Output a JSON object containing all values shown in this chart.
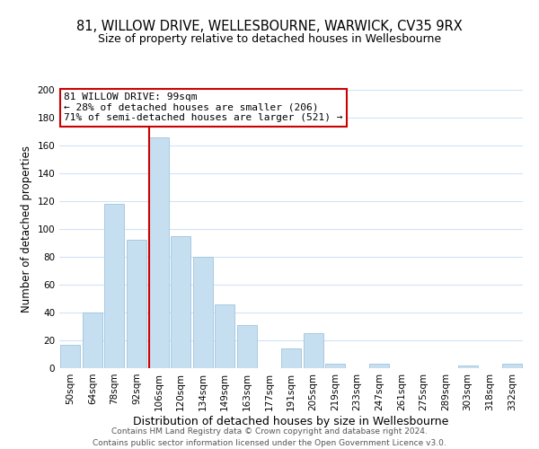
{
  "title": "81, WILLOW DRIVE, WELLESBOURNE, WARWICK, CV35 9RX",
  "subtitle": "Size of property relative to detached houses in Wellesbourne",
  "xlabel": "Distribution of detached houses by size in Wellesbourne",
  "ylabel": "Number of detached properties",
  "footer_line1": "Contains HM Land Registry data © Crown copyright and database right 2024.",
  "footer_line2": "Contains public sector information licensed under the Open Government Licence v3.0.",
  "bar_labels": [
    "50sqm",
    "64sqm",
    "78sqm",
    "92sqm",
    "106sqm",
    "120sqm",
    "134sqm",
    "149sqm",
    "163sqm",
    "177sqm",
    "191sqm",
    "205sqm",
    "219sqm",
    "233sqm",
    "247sqm",
    "261sqm",
    "275sqm",
    "289sqm",
    "303sqm",
    "318sqm",
    "332sqm"
  ],
  "bar_values": [
    17,
    40,
    118,
    92,
    166,
    95,
    80,
    46,
    31,
    0,
    14,
    25,
    3,
    0,
    3,
    0,
    0,
    0,
    2,
    0,
    3
  ],
  "bar_color": "#c5dff0",
  "bar_edge_color": "#a0c4de",
  "vline_color": "#cc0000",
  "annotation_box_text_line1": "81 WILLOW DRIVE: 99sqm",
  "annotation_box_text_line2": "← 28% of detached houses are smaller (206)",
  "annotation_box_text_line3": "71% of semi-detached houses are larger (521) →",
  "annotation_box_color": "#ffffff",
  "annotation_box_edge_color": "#cc0000",
  "ylim": [
    0,
    200
  ],
  "yticks": [
    0,
    20,
    40,
    60,
    80,
    100,
    120,
    140,
    160,
    180,
    200
  ],
  "bg_color": "#ffffff",
  "grid_color": "#d0e4f7",
  "title_fontsize": 10.5,
  "subtitle_fontsize": 9,
  "xlabel_fontsize": 9,
  "ylabel_fontsize": 8.5,
  "tick_fontsize": 7.5,
  "annotation_fontsize": 8,
  "footer_fontsize": 6.5
}
